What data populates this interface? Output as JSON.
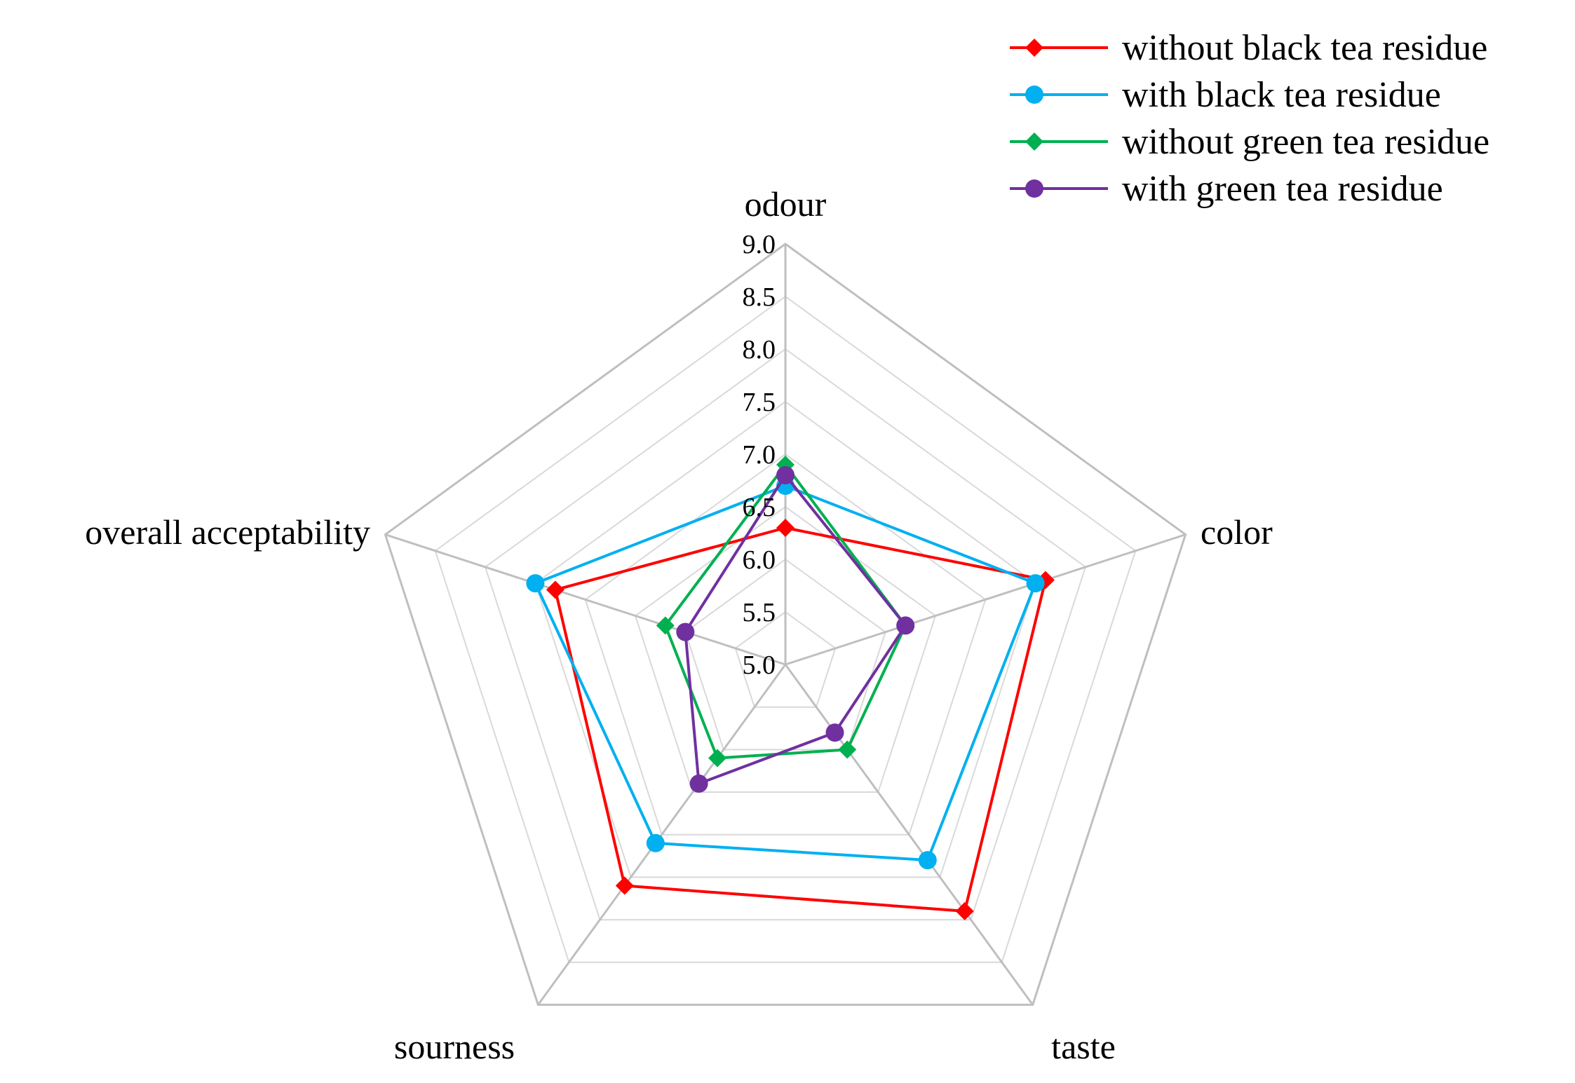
{
  "chart_data": {
    "type": "radar",
    "categories": [
      "odour",
      "color",
      "taste",
      "sourness",
      "overall acceptability"
    ],
    "rlim": [
      5.0,
      9.0
    ],
    "ticks": [
      "5.0",
      "5.5",
      "6.0",
      "6.5",
      "7.0",
      "7.5",
      "8.0",
      "8.5",
      "9.0"
    ],
    "grid": true,
    "legend_position": "top-right",
    "series": [
      {
        "name": "without black tea residue",
        "color": "#ff0000",
        "marker": "diamond",
        "values": [
          6.3,
          7.6,
          7.9,
          7.6,
          7.3
        ]
      },
      {
        "name": "with black tea residue",
        "color": "#00b0f0",
        "marker": "circle",
        "values": [
          6.7,
          7.5,
          7.3,
          7.1,
          7.5
        ]
      },
      {
        "name": "without green tea residue",
        "color": "#00b050",
        "marker": "diamond",
        "values": [
          6.9,
          6.2,
          6.0,
          6.1,
          6.2
        ]
      },
      {
        "name": "with green tea residue",
        "color": "#7030a0",
        "marker": "circle",
        "values": [
          6.8,
          6.2,
          5.8,
          6.4,
          6.0
        ]
      }
    ]
  }
}
